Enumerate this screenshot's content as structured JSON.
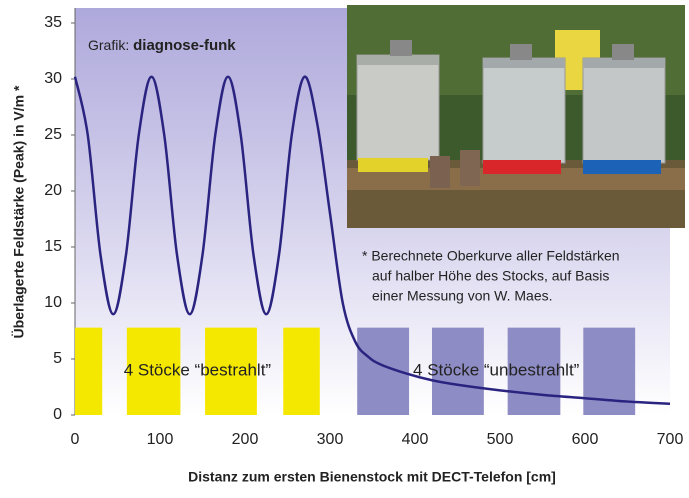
{
  "chart_data": {
    "type": "line",
    "x_label": "Distanz zum ersten Bienenstock mit DECT-Telefon [cm]",
    "y_label": "Überlagerte Feldstärke (Peak) in V/m *",
    "credit_prefix": "Grafik:",
    "credit_name": "diagnose-funk",
    "footnote": [
      "* Berechnete Oberkurve aller Feldstärken",
      "auf halber Höhe des Stocks, auf Basis",
      "einer Messung von W. Maes."
    ],
    "xlim": [
      0,
      700
    ],
    "xticks": [
      0,
      100,
      200,
      300,
      400,
      500,
      600,
      700
    ],
    "ylim": [
      0,
      35
    ],
    "yticks": [
      0,
      5,
      10,
      15,
      20,
      25,
      30,
      35
    ],
    "series": [
      {
        "color": "#2a2480",
        "x": [
          0,
          15,
          30,
          45,
          60,
          75,
          90,
          105,
          120,
          135,
          150,
          165,
          180,
          195,
          210,
          225,
          240,
          255,
          270,
          285,
          300,
          315,
          330,
          345,
          360,
          390,
          420,
          450,
          500,
          550,
          600,
          650,
          700
        ],
        "values": [
          30.2,
          25,
          14.3,
          9,
          14.3,
          25,
          30.2,
          25,
          14.3,
          9,
          14.3,
          25,
          30.2,
          25,
          14.3,
          9,
          14.3,
          25,
          30.2,
          26,
          18,
          10,
          6.5,
          5.2,
          4.5,
          3.7,
          3.1,
          2.7,
          2.2,
          1.8,
          1.5,
          1.2,
          1.0
        ]
      }
    ],
    "hive_groups": [
      {
        "label": "4 Stöcke “bestrahlt”",
        "color": "#f5e800",
        "height": 7.8,
        "hives": [
          [
            0,
            32
          ],
          [
            61,
            124
          ],
          [
            153,
            214
          ],
          [
            245,
            288
          ]
        ]
      },
      {
        "label": "4 Stöcke “unbestrahlt”",
        "color": "#8e8cc4",
        "height": 7.8,
        "hives": [
          [
            332,
            393
          ],
          [
            420,
            481
          ],
          [
            509,
            571
          ],
          [
            598,
            659
          ]
        ]
      }
    ]
  }
}
